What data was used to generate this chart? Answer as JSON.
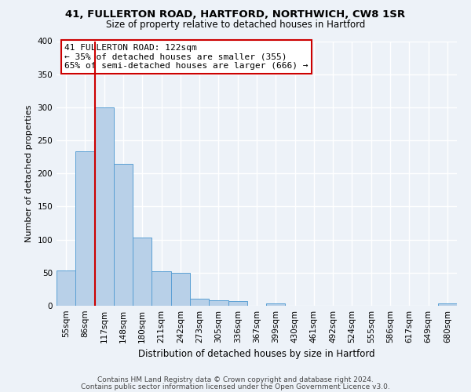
{
  "title1": "41, FULLERTON ROAD, HARTFORD, NORTHWICH, CW8 1SR",
  "title2": "Size of property relative to detached houses in Hartford",
  "xlabel": "Distribution of detached houses by size in Hartford",
  "ylabel": "Number of detached properties",
  "bin_labels": [
    "55sqm",
    "86sqm",
    "117sqm",
    "148sqm",
    "180sqm",
    "211sqm",
    "242sqm",
    "273sqm",
    "305sqm",
    "336sqm",
    "367sqm",
    "399sqm",
    "430sqm",
    "461sqm",
    "492sqm",
    "524sqm",
    "555sqm",
    "586sqm",
    "617sqm",
    "649sqm",
    "680sqm"
  ],
  "bar_values": [
    53,
    233,
    300,
    215,
    103,
    52,
    50,
    11,
    8,
    7,
    0,
    4,
    0,
    0,
    0,
    0,
    0,
    0,
    0,
    0,
    3
  ],
  "bar_color": "#b8d0e8",
  "bar_edge_color": "#5a9fd4",
  "vline_color": "#cc0000",
  "annotation_box_text": "41 FULLERTON ROAD: 122sqm\n← 35% of detached houses are smaller (355)\n65% of semi-detached houses are larger (666) →",
  "annotation_box_color": "#ffffff",
  "annotation_box_edge_color": "#cc0000",
  "ylim": [
    0,
    400
  ],
  "yticks": [
    0,
    50,
    100,
    150,
    200,
    250,
    300,
    350,
    400
  ],
  "footer1": "Contains HM Land Registry data © Crown copyright and database right 2024.",
  "footer2": "Contains public sector information licensed under the Open Government Licence v3.0.",
  "bg_color": "#edf2f8",
  "plot_bg_color": "#edf2f8",
  "grid_color": "#ffffff",
  "title1_fontsize": 9.5,
  "title2_fontsize": 8.5,
  "ylabel_fontsize": 8,
  "xlabel_fontsize": 8.5,
  "tick_fontsize": 7.5,
  "annot_fontsize": 8,
  "footer_fontsize": 6.5
}
